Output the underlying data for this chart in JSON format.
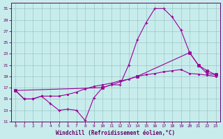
{
  "xlabel": "Windchill (Refroidissement éolien,°C)",
  "bg_color": "#c8ecec",
  "line_color": "#990099",
  "grid_color": "#b0d0d0",
  "xlim": [
    -0.5,
    23.5
  ],
  "ylim": [
    11,
    32
  ],
  "yticks": [
    11,
    13,
    15,
    17,
    19,
    21,
    23,
    25,
    27,
    29,
    31
  ],
  "xticks": [
    0,
    1,
    2,
    3,
    4,
    5,
    6,
    7,
    8,
    9,
    10,
    11,
    12,
    13,
    14,
    15,
    16,
    17,
    18,
    19,
    20,
    21,
    22,
    23
  ],
  "line1_x": [
    0,
    1,
    2,
    3,
    4,
    5,
    6,
    7,
    8,
    9,
    10,
    11,
    12,
    13,
    14,
    15,
    16,
    17,
    18,
    19,
    20,
    21,
    22,
    23
  ],
  "line1_y": [
    16.5,
    15.0,
    15.0,
    15.5,
    14.2,
    13.0,
    13.2,
    13.0,
    11.2,
    15.2,
    17.0,
    17.5,
    17.5,
    21.0,
    25.5,
    28.5,
    31.0,
    31.0,
    29.5,
    27.2,
    23.2,
    21.0,
    19.5,
    19.3
  ],
  "line2_x": [
    0,
    1,
    2,
    3,
    4,
    5,
    6,
    7,
    8,
    9,
    10,
    11,
    12,
    13,
    14,
    15,
    16,
    17,
    18,
    19,
    20,
    21,
    22,
    23
  ],
  "line2_y": [
    16.5,
    15.0,
    15.0,
    15.5,
    15.5,
    15.5,
    15.8,
    16.2,
    16.8,
    17.2,
    17.5,
    17.8,
    18.2,
    18.5,
    19.0,
    19.3,
    19.5,
    19.8,
    20.0,
    20.2,
    19.5,
    19.4,
    19.2,
    19.0
  ],
  "line3_x": [
    0,
    10,
    14,
    20,
    21,
    22,
    23
  ],
  "line3_y": [
    16.5,
    17.0,
    19.0,
    23.2,
    21.0,
    20.0,
    19.3
  ]
}
